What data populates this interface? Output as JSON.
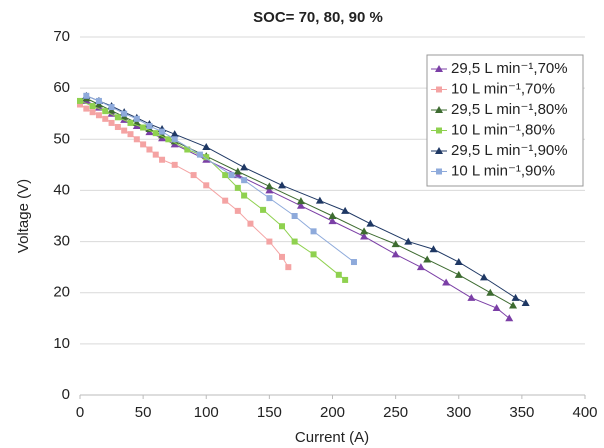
{
  "chart_data": {
    "type": "line",
    "title": "SOC= 70, 80, 90 %",
    "x_label": "Current (A)",
    "y_label": "Voltage (V)",
    "xlim": [
      0,
      400
    ],
    "xticks": [
      0,
      50,
      100,
      150,
      200,
      250,
      300,
      350,
      400
    ],
    "ylim": [
      0,
      70
    ],
    "yticks": [
      0,
      10,
      20,
      30,
      40,
      50,
      60,
      70
    ],
    "grid": true,
    "legend": "upper right",
    "series": [
      {
        "name": "29,5 L min⁻¹,70%",
        "color": "#7b3fa6",
        "marker": "triangle",
        "x": [
          5,
          15,
          25,
          35,
          45,
          55,
          65,
          75,
          100,
          125,
          150,
          175,
          200,
          225,
          250,
          270,
          290,
          310,
          330,
          340
        ],
        "values": [
          57.5,
          56.2,
          55,
          53.8,
          52.6,
          51.4,
          50.2,
          49,
          46,
          43,
          40,
          37,
          34,
          31,
          27.5,
          25,
          22,
          19,
          17,
          15
        ]
      },
      {
        "name": "10 L min⁻¹,70%",
        "color": "#f4a3a3",
        "marker": "square",
        "x": [
          0,
          5,
          10,
          15,
          20,
          25,
          30,
          35,
          40,
          45,
          50,
          55,
          60,
          65,
          75,
          90,
          100,
          115,
          125,
          135,
          150,
          160,
          165
        ],
        "values": [
          56.8,
          56,
          55.3,
          54.7,
          54,
          53.2,
          52.4,
          51.7,
          51,
          50,
          49,
          48,
          47,
          46,
          45,
          43,
          41,
          38,
          36,
          33.5,
          30,
          27,
          25
        ]
      },
      {
        "name": "29,5 L min⁻¹,80%",
        "color": "#3d6b30",
        "marker": "triangle",
        "x": [
          5,
          15,
          25,
          35,
          45,
          55,
          65,
          75,
          100,
          125,
          150,
          175,
          200,
          225,
          250,
          275,
          300,
          325,
          343
        ],
        "values": [
          58,
          56.8,
          55.6,
          54.4,
          53.2,
          52,
          50.8,
          49.6,
          46.7,
          43.7,
          40.8,
          37.9,
          35,
          32,
          29.5,
          26.5,
          23.5,
          20,
          17.5
        ]
      },
      {
        "name": "10 L min⁻¹,80%",
        "color": "#8fd14f",
        "marker": "square",
        "x": [
          0,
          10,
          20,
          30,
          40,
          50,
          60,
          70,
          85,
          100,
          115,
          125,
          130,
          145,
          160,
          170,
          185,
          205,
          210
        ],
        "values": [
          57.5,
          56.5,
          55.5,
          54.3,
          53.2,
          52.3,
          51.2,
          50,
          48,
          46.5,
          43,
          40.5,
          39,
          36.2,
          33,
          30,
          27.5,
          23.5,
          22.5
        ]
      },
      {
        "name": "29,5 L min⁻¹,90%",
        "color": "#1f3864",
        "marker": "triangle",
        "x": [
          5,
          15,
          25,
          35,
          45,
          55,
          65,
          75,
          100,
          130,
          160,
          190,
          210,
          230,
          260,
          280,
          300,
          320,
          345,
          353
        ],
        "values": [
          58.5,
          57.5,
          56.5,
          55.3,
          54.2,
          53,
          52,
          51,
          48.5,
          44.5,
          41,
          38,
          36,
          33.5,
          30,
          28.5,
          26,
          23,
          19,
          18
        ]
      },
      {
        "name": "10 L min⁻¹,90%",
        "color": "#8eaadb",
        "marker": "square",
        "x": [
          5,
          15,
          25,
          35,
          45,
          55,
          65,
          75,
          95,
          120,
          130,
          150,
          170,
          185,
          217
        ],
        "values": [
          58.5,
          57.5,
          56.3,
          55,
          54,
          52.6,
          51.5,
          50,
          47,
          43,
          42,
          38.5,
          35,
          32,
          26
        ]
      }
    ]
  }
}
